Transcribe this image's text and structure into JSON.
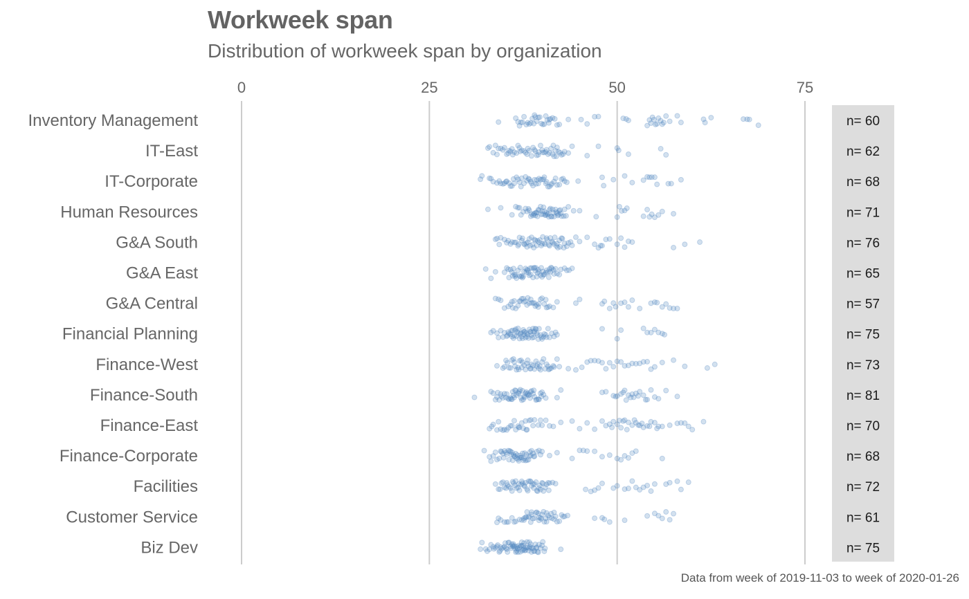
{
  "chart_data": {
    "type": "scatter",
    "title": "Workweek span",
    "subtitle": "Distribution of workweek span by organization",
    "caption": "Data from week of 2019-11-03 to week of 2020-01-26",
    "xlabel": "",
    "ylabel": "",
    "xlim": [
      0,
      80
    ],
    "xticks": [
      0,
      25,
      50,
      75
    ],
    "grid": "vertical major gridlines",
    "point_color": "#4f86bf",
    "point_opacity": 0.25,
    "categories": [
      "Inventory Management",
      "IT-East",
      "IT-Corporate",
      "Human Resources",
      "G&A South",
      "G&A East",
      "G&A Central",
      "Financial Planning",
      "Finance-West",
      "Finance-South",
      "Finance-East",
      "Finance-Corporate",
      "Facilities",
      "Customer Service",
      "Biz Dev"
    ],
    "counts": [
      "n= 60",
      "n= 62",
      "n= 68",
      "n= 71",
      "n= 76",
      "n= 65",
      "n= 57",
      "n= 75",
      "n= 73",
      "n= 81",
      "n= 70",
      "n= 68",
      "n= 72",
      "n= 61",
      "n= 75"
    ],
    "series": [
      {
        "category": "Inventory Management",
        "values": [
          34.2,
          36.5,
          36.8,
          37.0,
          37.2,
          37.4,
          37.6,
          37.9,
          38.1,
          38.3,
          38.5,
          38.7,
          38.9,
          39.1,
          39.3,
          39.5,
          39.7,
          39.9,
          40.1,
          40.3,
          40.5,
          40.7,
          40.9,
          41.1,
          41.4,
          41.7,
          42.0,
          42.3,
          43.5,
          45.2,
          46.0,
          47.0,
          47.5,
          50.8,
          51.2,
          51.5,
          54.0,
          54.3,
          54.5,
          54.7,
          54.9,
          55.1,
          55.3,
          55.5,
          55.8,
          56.0,
          56.2,
          56.5,
          57.0,
          58.0,
          58.5,
          61.5,
          61.7,
          62.5,
          66.8,
          67.3,
          67.6,
          68.8,
          41.0,
          39.0
        ]
      },
      {
        "category": "IT-East",
        "values": [
          32.8,
          33.0,
          33.5,
          33.8,
          34.2,
          34.5,
          34.8,
          35.0,
          35.3,
          35.6,
          35.8,
          36.1,
          36.3,
          36.6,
          36.8,
          37.1,
          37.3,
          37.6,
          37.8,
          38.1,
          38.3,
          38.6,
          38.8,
          39.1,
          39.3,
          39.6,
          39.8,
          40.1,
          40.3,
          40.6,
          40.8,
          41.0,
          41.2,
          41.4,
          41.6,
          41.8,
          42.0,
          42.2,
          42.4,
          42.6,
          43.0,
          43.5,
          44.0,
          46.0,
          47.5,
          50.0,
          50.2,
          51.5,
          55.8,
          56.5,
          37.0,
          38.0,
          39.0,
          40.0,
          41.5,
          36.0,
          35.5,
          34.0,
          42.8,
          41.9,
          40.5,
          39.5
        ]
      },
      {
        "category": "IT-Corporate",
        "values": [
          31.8,
          32.0,
          33.2,
          33.5,
          34.0,
          34.5,
          35.0,
          35.3,
          35.6,
          36.0,
          36.3,
          36.6,
          37.0,
          37.3,
          37.6,
          38.0,
          38.3,
          38.6,
          39.0,
          39.3,
          39.6,
          40.0,
          40.3,
          40.6,
          41.0,
          41.3,
          41.6,
          42.0,
          42.3,
          42.6,
          43.0,
          44.8,
          48.0,
          48.2,
          49.5,
          51.0,
          52.0,
          53.5,
          54.0,
          54.3,
          54.6,
          55.0,
          55.3,
          56.8,
          57.2,
          58.5,
          33.0,
          34.3,
          35.8,
          36.8,
          37.8,
          38.8,
          39.8,
          40.8,
          41.8,
          42.8,
          43.3,
          37.2,
          38.2,
          39.2,
          40.2,
          41.2,
          36.2,
          35.2,
          34.8,
          38.5,
          39.5,
          40.5
        ]
      },
      {
        "category": "Human Resources",
        "values": [
          32.8,
          34.5,
          36.0,
          36.5,
          37.0,
          37.5,
          38.0,
          38.3,
          38.6,
          39.0,
          39.3,
          39.6,
          40.0,
          40.3,
          40.6,
          41.0,
          41.3,
          41.6,
          42.0,
          42.3,
          42.6,
          43.0,
          43.5,
          44.2,
          45.0,
          47.2,
          50.0,
          50.3,
          50.6,
          51.0,
          51.3,
          53.5,
          54.0,
          54.3,
          54.6,
          55.0,
          55.5,
          56.0,
          57.5,
          38.5,
          39.5,
          40.5,
          41.5,
          42.5,
          39.2,
          40.2,
          41.2,
          42.2,
          39.8,
          40.8,
          41.8,
          38.8,
          39.9,
          40.9,
          41.9,
          42.9,
          37.8,
          36.8,
          38.2,
          39.4,
          40.4,
          41.4,
          42.4,
          43.2,
          37.2,
          38.9,
          40.1,
          41.1,
          42.1,
          39.1,
          40.7
        ]
      },
      {
        "category": "G&A South",
        "values": [
          33.8,
          34.0,
          34.5,
          35.0,
          35.5,
          36.0,
          36.5,
          37.0,
          37.3,
          37.6,
          38.0,
          38.3,
          38.6,
          39.0,
          39.3,
          39.6,
          40.0,
          40.3,
          40.6,
          41.0,
          41.3,
          41.6,
          42.0,
          42.3,
          42.6,
          43.0,
          43.5,
          44.0,
          45.0,
          46.0,
          47.5,
          47.8,
          48.0,
          48.5,
          49.0,
          50.0,
          51.0,
          51.5,
          52.0,
          57.5,
          59.0,
          61.0,
          34.3,
          35.3,
          36.3,
          37.7,
          38.7,
          39.7,
          40.7,
          41.7,
          42.7,
          43.3,
          38.1,
          39.1,
          40.1,
          41.1,
          42.1,
          36.8,
          37.9,
          38.9,
          39.9,
          40.9,
          41.9,
          42.9,
          35.8,
          36.9,
          37.4,
          38.4,
          39.4,
          40.4,
          41.4,
          42.4,
          43.8,
          44.5,
          47.0,
          50.5
        ]
      },
      {
        "category": "G&A East",
        "values": [
          32.5,
          33.2,
          33.8,
          35.0,
          35.3,
          35.6,
          36.0,
          36.3,
          36.6,
          37.0,
          37.3,
          37.6,
          38.0,
          38.3,
          38.6,
          39.0,
          39.3,
          39.6,
          40.0,
          40.3,
          40.6,
          41.0,
          41.3,
          41.6,
          42.0,
          42.3,
          43.0,
          43.3,
          43.6,
          44.0,
          35.5,
          36.2,
          36.8,
          37.2,
          37.8,
          38.2,
          38.8,
          39.2,
          39.8,
          40.2,
          40.8,
          41.2,
          41.8,
          35.8,
          36.5,
          37.5,
          38.5,
          39.5,
          40.5,
          41.5,
          36.1,
          37.1,
          38.1,
          39.1,
          40.1,
          41.1,
          37.9,
          38.9,
          39.9,
          40.9,
          38.4,
          39.4,
          37.4,
          36.4,
          42.5
        ]
      },
      {
        "category": "G&A Central",
        "values": [
          33.8,
          34.5,
          35.0,
          35.5,
          36.0,
          36.5,
          37.0,
          37.3,
          37.6,
          38.0,
          38.3,
          38.6,
          39.0,
          39.3,
          39.6,
          40.0,
          40.3,
          40.6,
          41.0,
          41.5,
          42.0,
          44.5,
          45.0,
          48.0,
          48.3,
          49.5,
          49.8,
          50.5,
          51.0,
          51.5,
          53.0,
          54.5,
          55.0,
          55.3,
          56.0,
          56.5,
          57.0,
          57.5,
          58.0,
          34.2,
          35.8,
          36.8,
          37.8,
          38.8,
          39.8,
          40.8,
          36.3,
          37.5,
          38.5,
          39.5,
          40.5,
          38.1,
          39.1,
          37.1,
          36.1,
          52.0,
          49.0
        ]
      },
      {
        "category": "Financial Planning",
        "values": [
          33.2,
          33.5,
          34.0,
          34.5,
          35.0,
          35.3,
          35.6,
          36.0,
          36.3,
          36.6,
          37.0,
          37.3,
          37.6,
          38.0,
          38.3,
          38.6,
          39.0,
          39.3,
          39.6,
          40.0,
          40.3,
          40.6,
          41.0,
          41.3,
          41.6,
          42.0,
          48.0,
          50.0,
          50.5,
          53.5,
          54.0,
          54.5,
          55.0,
          55.5,
          56.0,
          56.3,
          34.8,
          35.8,
          36.8,
          37.8,
          38.8,
          39.8,
          40.8,
          41.8,
          35.5,
          36.5,
          37.5,
          38.5,
          39.5,
          40.5,
          36.2,
          37.2,
          38.2,
          39.2,
          40.2,
          36.9,
          37.9,
          38.9,
          39.9,
          37.4,
          38.4,
          39.4,
          36.4,
          35.4,
          37.1,
          38.1,
          39.1,
          36.7,
          37.7,
          38.7,
          35.9,
          36.1,
          37.6,
          38.9,
          34.2
        ]
      },
      {
        "category": "Finance-West",
        "values": [
          34.0,
          34.8,
          35.2,
          35.6,
          36.0,
          36.4,
          36.8,
          37.2,
          37.6,
          38.0,
          38.4,
          38.8,
          39.2,
          39.6,
          40.0,
          40.4,
          40.8,
          41.2,
          41.6,
          42.0,
          43.5,
          44.5,
          45.3,
          46.0,
          46.5,
          47.0,
          47.5,
          48.0,
          48.5,
          49.0,
          49.5,
          50.0,
          50.5,
          51.0,
          51.5,
          52.0,
          52.5,
          53.0,
          53.5,
          54.0,
          54.5,
          55.0,
          56.0,
          57.5,
          59.0,
          62.0,
          63.0,
          35.0,
          36.2,
          37.4,
          38.6,
          39.8,
          41.0,
          35.8,
          37.0,
          38.2,
          39.4,
          40.6,
          36.6,
          37.8,
          39.0,
          40.2,
          36.9,
          38.1,
          39.3,
          37.3,
          38.5,
          39.7,
          35.4,
          36.3,
          40.9,
          41.5,
          42.3
        ]
      },
      {
        "category": "Finance-South",
        "values": [
          31.0,
          33.2,
          33.5,
          34.0,
          34.3,
          34.6,
          35.0,
          35.3,
          35.6,
          36.0,
          36.3,
          36.6,
          37.0,
          37.3,
          37.6,
          38.0,
          38.3,
          38.6,
          39.0,
          39.3,
          39.6,
          40.0,
          40.5,
          42.0,
          42.5,
          48.0,
          49.5,
          50.0,
          50.5,
          51.0,
          51.5,
          52.0,
          52.5,
          53.0,
          53.5,
          54.0,
          54.5,
          55.0,
          55.5,
          56.5,
          58.0,
          33.8,
          34.8,
          35.8,
          36.8,
          37.8,
          38.8,
          39.8,
          34.5,
          35.5,
          36.5,
          37.5,
          38.5,
          39.5,
          35.2,
          36.2,
          37.2,
          38.2,
          39.2,
          35.9,
          36.9,
          37.9,
          38.9,
          36.4,
          37.4,
          38.4,
          34.1,
          37.7,
          38.1,
          49.8,
          50.8,
          51.8,
          52.8,
          53.8,
          48.5,
          39.9,
          40.2,
          36.1,
          37.1,
          51.2,
          52.2
        ]
      },
      {
        "category": "Finance-East",
        "values": [
          33.0,
          33.5,
          34.0,
          34.5,
          35.0,
          35.5,
          36.0,
          36.5,
          37.0,
          37.5,
          38.0,
          38.5,
          39.0,
          39.5,
          40.0,
          40.5,
          41.0,
          42.5,
          44.0,
          45.0,
          46.0,
          47.0,
          48.0,
          48.5,
          49.0,
          49.5,
          50.0,
          50.5,
          51.0,
          51.5,
          52.0,
          52.5,
          53.0,
          53.5,
          54.0,
          54.5,
          55.0,
          55.5,
          56.0,
          57.0,
          58.0,
          58.5,
          59.0,
          59.5,
          60.0,
          61.5,
          33.3,
          34.8,
          35.8,
          36.8,
          37.8,
          38.8,
          39.8,
          35.3,
          36.3,
          37.3,
          38.3,
          51.3,
          52.3,
          53.3,
          49.3,
          50.3,
          54.3,
          55.3,
          34.2,
          36.9,
          37.9,
          50.8,
          52.8,
          41.5
        ]
      },
      {
        "category": "Finance-Corporate",
        "values": [
          32.3,
          33.0,
          33.5,
          34.0,
          34.3,
          34.6,
          35.0,
          35.3,
          35.6,
          36.0,
          36.3,
          36.6,
          37.0,
          37.3,
          37.6,
          38.0,
          38.3,
          38.6,
          39.0,
          39.3,
          39.6,
          40.0,
          41.0,
          42.0,
          44.0,
          45.0,
          45.5,
          46.0,
          47.0,
          48.0,
          49.0,
          50.0,
          50.5,
          51.0,
          51.5,
          52.0,
          52.5,
          56.0,
          33.8,
          34.8,
          35.8,
          36.8,
          37.8,
          38.8,
          34.5,
          35.5,
          36.5,
          37.5,
          38.5,
          35.2,
          36.2,
          37.2,
          38.2,
          35.9,
          36.9,
          37.9,
          36.4,
          37.4,
          38.4,
          36.7,
          37.1,
          35.7,
          34.9,
          36.1,
          37.7,
          38.9,
          33.2,
          39.8
        ]
      },
      {
        "category": "Facilities",
        "values": [
          33.8,
          34.2,
          34.6,
          35.0,
          35.4,
          35.8,
          36.2,
          36.6,
          37.0,
          37.4,
          37.8,
          38.2,
          38.6,
          39.0,
          39.4,
          39.8,
          40.2,
          40.6,
          41.0,
          41.4,
          45.8,
          46.5,
          47.0,
          47.5,
          48.0,
          49.5,
          50.0,
          51.0,
          51.5,
          52.0,
          52.5,
          53.0,
          53.5,
          54.0,
          54.5,
          55.0,
          56.5,
          57.0,
          58.0,
          58.5,
          59.5,
          34.4,
          35.2,
          36.0,
          36.8,
          37.6,
          38.4,
          39.2,
          40.0,
          40.8,
          34.8,
          35.6,
          36.4,
          37.2,
          38.0,
          38.8,
          39.6,
          40.4,
          35.3,
          36.1,
          36.9,
          37.7,
          38.5,
          39.3,
          40.1,
          40.9,
          36.5,
          37.3,
          38.1,
          38.9,
          39.7,
          41.8
        ]
      },
      {
        "category": "Customer Service",
        "values": [
          34.0,
          34.5,
          35.0,
          35.5,
          36.0,
          36.5,
          37.0,
          37.3,
          37.6,
          38.0,
          38.3,
          38.6,
          39.0,
          39.3,
          39.6,
          40.0,
          40.3,
          40.6,
          41.0,
          41.3,
          41.6,
          42.0,
          42.3,
          42.6,
          43.0,
          43.4,
          47.0,
          48.0,
          49.0,
          51.0,
          54.0,
          55.0,
          55.5,
          56.0,
          56.5,
          57.0,
          57.5,
          35.3,
          36.3,
          37.6,
          38.6,
          39.6,
          40.6,
          41.6,
          37.8,
          38.8,
          39.8,
          40.8,
          41.8,
          38.2,
          39.2,
          40.2,
          41.2,
          38.5,
          39.5,
          40.5,
          37.9,
          39.9,
          34.2,
          42.8,
          48.3
        ]
      },
      {
        "category": "Biz Dev",
        "values": [
          31.8,
          32.0,
          32.5,
          33.0,
          33.5,
          34.0,
          34.3,
          34.6,
          35.0,
          35.3,
          35.6,
          36.0,
          36.3,
          36.6,
          37.0,
          37.3,
          37.6,
          38.0,
          38.3,
          38.6,
          39.0,
          39.3,
          39.6,
          40.0,
          40.3,
          42.5,
          33.8,
          34.8,
          35.8,
          36.8,
          37.8,
          38.8,
          39.8,
          34.5,
          35.5,
          36.5,
          37.5,
          38.5,
          39.5,
          35.2,
          36.2,
          37.2,
          38.2,
          39.2,
          35.9,
          36.9,
          37.9,
          38.9,
          36.4,
          37.4,
          38.4,
          36.7,
          37.7,
          33.2,
          34.1,
          35.1,
          36.1,
          37.1,
          38.1,
          39.1,
          40.1,
          36.8,
          37.3,
          38.3,
          32.7,
          33.6,
          34.4,
          35.4,
          36.6,
          37.6,
          38.6,
          39.4,
          40.4,
          37.5,
          36.2
        ]
      }
    ]
  }
}
